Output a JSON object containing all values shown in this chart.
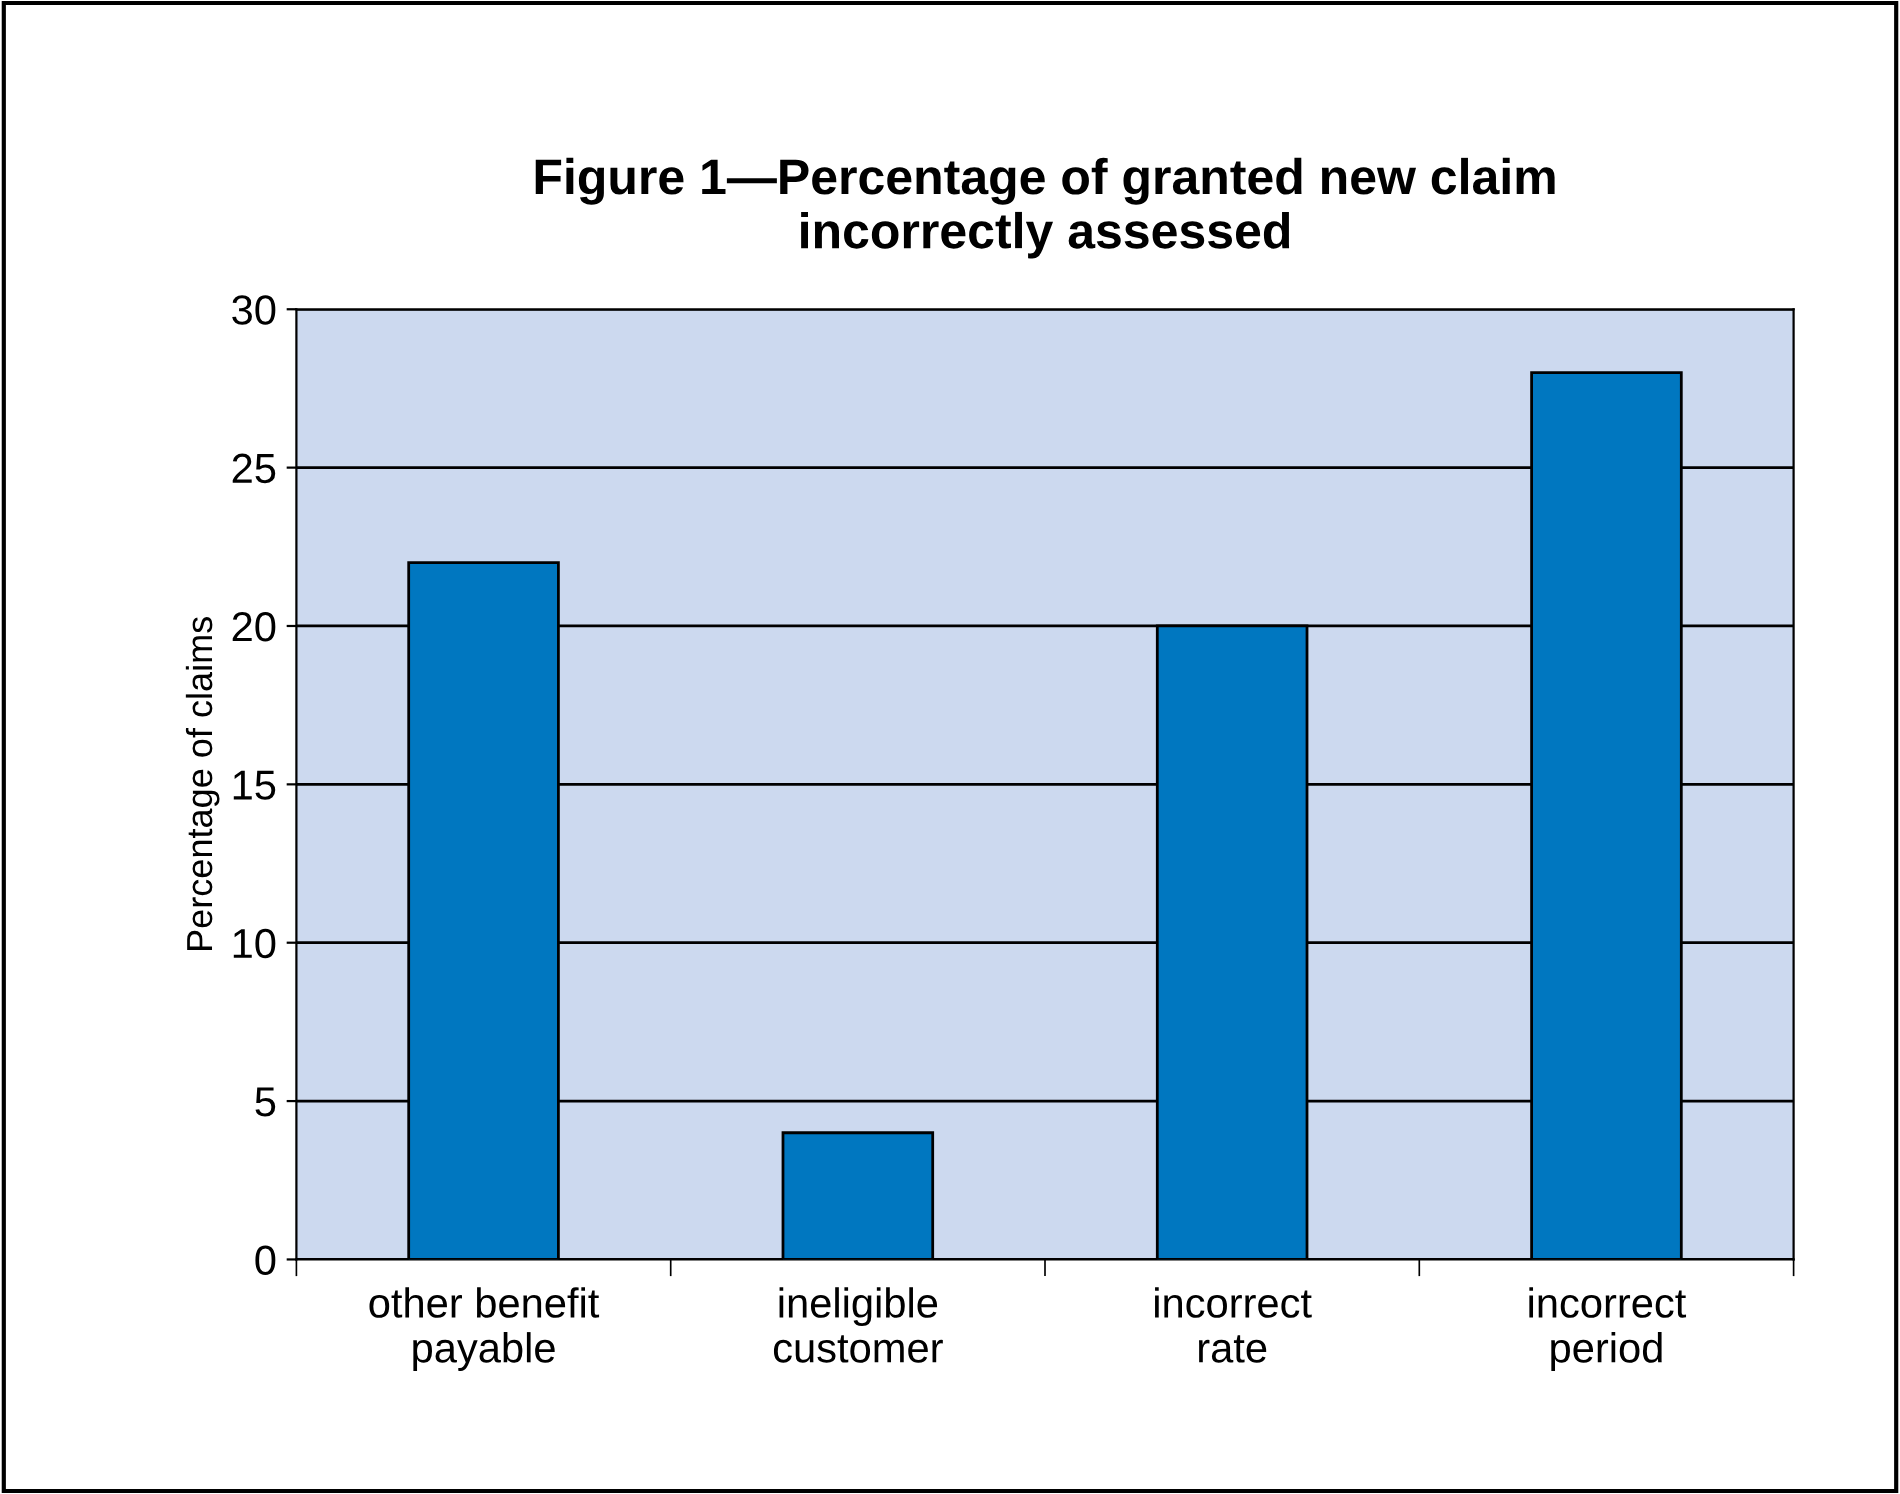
{
  "chart_data": {
    "type": "bar",
    "title": "Figure 1—Percentage of granted new claim\nincorrectly assessed",
    "ylabel": "Percentage of claims",
    "categories": [
      "other benefit\npayable",
      "ineligible\ncustomer",
      "incorrect\nrate",
      "incorrect\nperiod"
    ],
    "values": [
      22,
      4,
      20,
      28
    ],
    "color": "#0077c0",
    "ylim": [
      0,
      30
    ],
    "yticks": [
      0,
      5,
      10,
      15,
      20,
      25,
      30
    ],
    "grid": "y",
    "legend": false
  }
}
